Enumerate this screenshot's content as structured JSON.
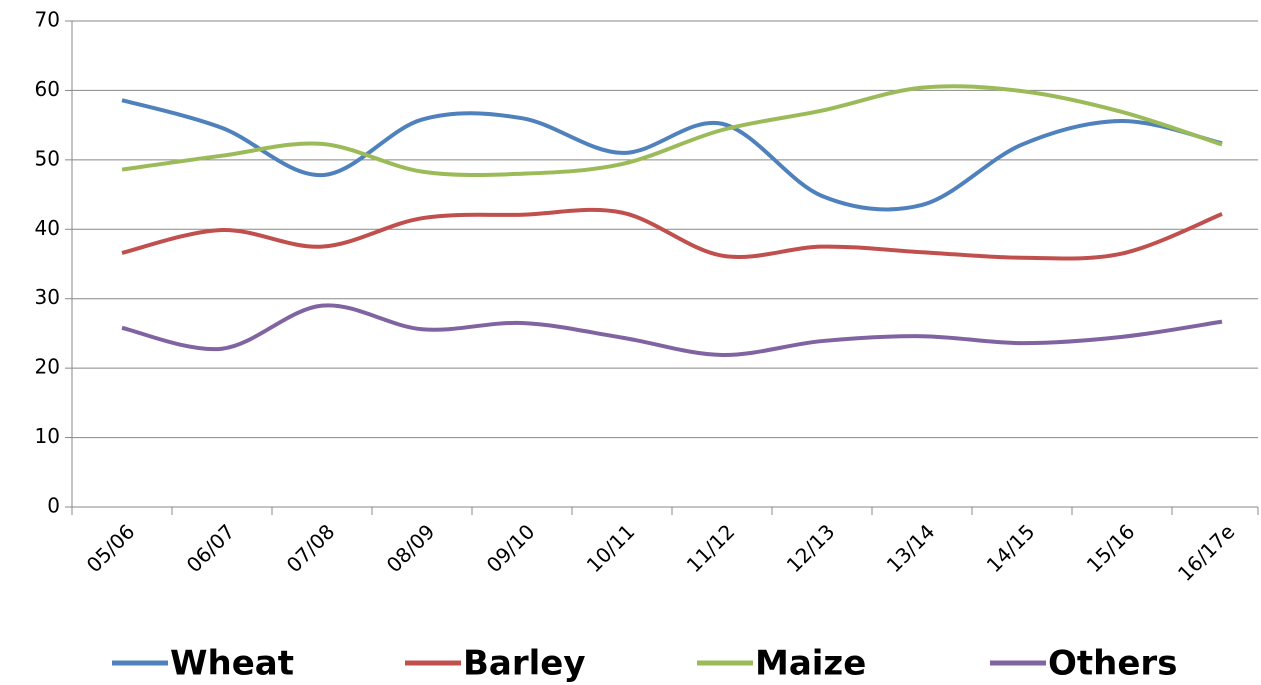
{
  "chart_data": {
    "type": "line",
    "categories": [
      "05/06",
      "06/07",
      "07/08",
      "08/09",
      "09/10",
      "10/11",
      "11/12",
      "12/13",
      "13/14",
      "14/15",
      "15/16",
      "16/17e"
    ],
    "series": [
      {
        "name": "Wheat",
        "color": "#4f81bd",
        "values": [
          58.6,
          54.6,
          47.8,
          55.8,
          56,
          51,
          55.2,
          44.8,
          43.5,
          52.2,
          55.6,
          52.4
        ]
      },
      {
        "name": "Barley",
        "color": "#c0504d",
        "values": [
          36.6,
          39.9,
          37.5,
          41.6,
          42.1,
          42.4,
          36.2,
          37.5,
          36.7,
          35.9,
          36.5,
          42.2
        ]
      },
      {
        "name": "Maize",
        "color": "#9bbb59",
        "values": [
          48.6,
          50.6,
          52.3,
          48.3,
          48,
          49.4,
          54.3,
          57.1,
          60.4,
          59.9,
          56.9,
          52.2
        ]
      },
      {
        "name": "Others",
        "color": "#8064a2",
        "values": [
          25.8,
          22.8,
          29.0,
          25.6,
          26.5,
          24.4,
          21.9,
          23.9,
          24.6,
          23.6,
          24.5,
          26.7
        ]
      }
    ],
    "ylim": [
      0,
      70
    ],
    "yticks": [
      0,
      10,
      20,
      30,
      40,
      50,
      60,
      70
    ],
    "grid": true,
    "smooth": true,
    "legend": "bottom"
  }
}
